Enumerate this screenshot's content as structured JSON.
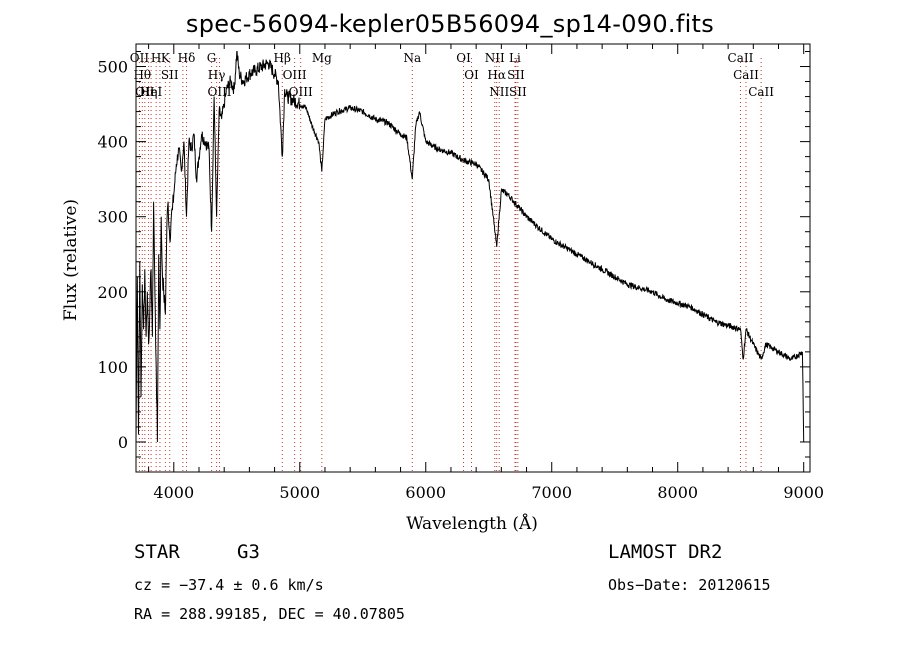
{
  "chart_data": {
    "type": "line",
    "title": "spec-56094-kepler05B56094_sp14-090.fits",
    "xlabel": "Wavelength (Å)",
    "ylabel": "Flux (relative)",
    "xlim": [
      3700,
      9050
    ],
    "ylim": [
      -40,
      530
    ],
    "xticks": [
      4000,
      5000,
      6000,
      7000,
      8000,
      9000
    ],
    "yticks": [
      0,
      100,
      200,
      300,
      400,
      500
    ],
    "grid": false,
    "series": [
      {
        "x": [
          3700,
          3710,
          3720,
          3730,
          3740,
          3750,
          3760,
          3770,
          3780,
          3790,
          3800,
          3810,
          3820,
          3830,
          3840,
          3850,
          3860,
          3870,
          3880,
          3890,
          3900,
          3910,
          3920,
          3933,
          3945,
          3955,
          3968,
          3980,
          3990,
          4000,
          4020,
          4040,
          4060,
          4080,
          4101,
          4120,
          4140,
          4160,
          4180,
          4200,
          4220,
          4250,
          4280,
          4300,
          4320,
          4340,
          4360,
          4380,
          4400,
          4420,
          4450,
          4480,
          4500,
          4520,
          4550,
          4600,
          4650,
          4700,
          4750,
          4800,
          4830,
          4861,
          4880,
          4900,
          4950,
          5000,
          5050,
          5100,
          5150,
          5175,
          5200,
          5300,
          5400,
          5500,
          5600,
          5700,
          5800,
          5850,
          5893,
          5920,
          5950,
          6000,
          6100,
          6200,
          6300,
          6400,
          6450,
          6500,
          6563,
          6600,
          6650,
          6700,
          6750,
          6800,
          6900,
          7000,
          7100,
          7200,
          7300,
          7400,
          7500,
          7600,
          7700,
          7800,
          7900,
          8000,
          8100,
          8200,
          8300,
          8400,
          8498,
          8520,
          8542,
          8600,
          8662,
          8700,
          8750,
          8800,
          8850,
          8900,
          8950,
          8990,
          9000
        ],
        "y": [
          0,
          220,
          10,
          240,
          60,
          210,
          150,
          230,
          140,
          200,
          130,
          180,
          230,
          140,
          320,
          200,
          100,
          0,
          250,
          150,
          300,
          220,
          200,
          170,
          290,
          320,
          270,
          300,
          310,
          330,
          370,
          390,
          360,
          400,
          300,
          400,
          390,
          410,
          350,
          380,
          410,
          400,
          390,
          280,
          460,
          300,
          440,
          430,
          450,
          470,
          480,
          470,
          520,
          490,
          480,
          490,
          495,
          500,
          505,
          490,
          480,
          380,
          470,
          460,
          455,
          450,
          445,
          420,
          400,
          360,
          430,
          440,
          445,
          440,
          430,
          425,
          410,
          405,
          350,
          420,
          440,
          400,
          390,
          385,
          375,
          370,
          360,
          350,
          260,
          335,
          330,
          320,
          310,
          300,
          285,
          270,
          260,
          250,
          240,
          230,
          220,
          210,
          205,
          200,
          190,
          185,
          180,
          170,
          160,
          155,
          150,
          110,
          150,
          130,
          110,
          130,
          125,
          120,
          115,
          110,
          115,
          120,
          0
        ]
      }
    ],
    "lines": [
      {
        "x": 3727,
        "label": "OII"
      },
      {
        "x": 3750,
        "label": "Hθ"
      },
      {
        "x": 3770,
        "label": "OII"
      },
      {
        "x": 3800,
        "label": "Hη"
      },
      {
        "x": 3820,
        "label": "HeI"
      },
      {
        "x": 3860,
        "label": "H"
      },
      {
        "x": 3890,
        "label": ""
      },
      {
        "x": 3933,
        "label": "K"
      },
      {
        "x": 3968,
        "label": "SII"
      },
      {
        "x": 4072,
        "label": ""
      },
      {
        "x": 4101,
        "label": "Hδ"
      },
      {
        "x": 4300,
        "label": "G"
      },
      {
        "x": 4340,
        "label": "Hγ"
      },
      {
        "x": 4363,
        "label": "OIII"
      },
      {
        "x": 4861,
        "label": "Hβ"
      },
      {
        "x": 4959,
        "label": "OIII"
      },
      {
        "x": 5007,
        "label": "OIII"
      },
      {
        "x": 5175,
        "label": "Mg"
      },
      {
        "x": 5893,
        "label": "Na"
      },
      {
        "x": 6300,
        "label": "OI"
      },
      {
        "x": 6363,
        "label": "OI"
      },
      {
        "x": 6548,
        "label": "NII"
      },
      {
        "x": 6563,
        "label": "Hα"
      },
      {
        "x": 6583,
        "label": "NII"
      },
      {
        "x": 6708,
        "label": "Li"
      },
      {
        "x": 6716,
        "label": "SII"
      },
      {
        "x": 6731,
        "label": "SII"
      },
      {
        "x": 8498,
        "label": "CaII"
      },
      {
        "x": 8542,
        "label": "CaII"
      },
      {
        "x": 8662,
        "label": "CaII"
      }
    ]
  },
  "info": {
    "class": "STAR",
    "subclass": "G3",
    "survey": "LAMOST DR2",
    "cz": "cz = −37.4 ± 0.6 km/s",
    "obs_date": "Obs−Date: 20120615",
    "radec": "RA = 288.99185, DEC =  40.07805"
  }
}
